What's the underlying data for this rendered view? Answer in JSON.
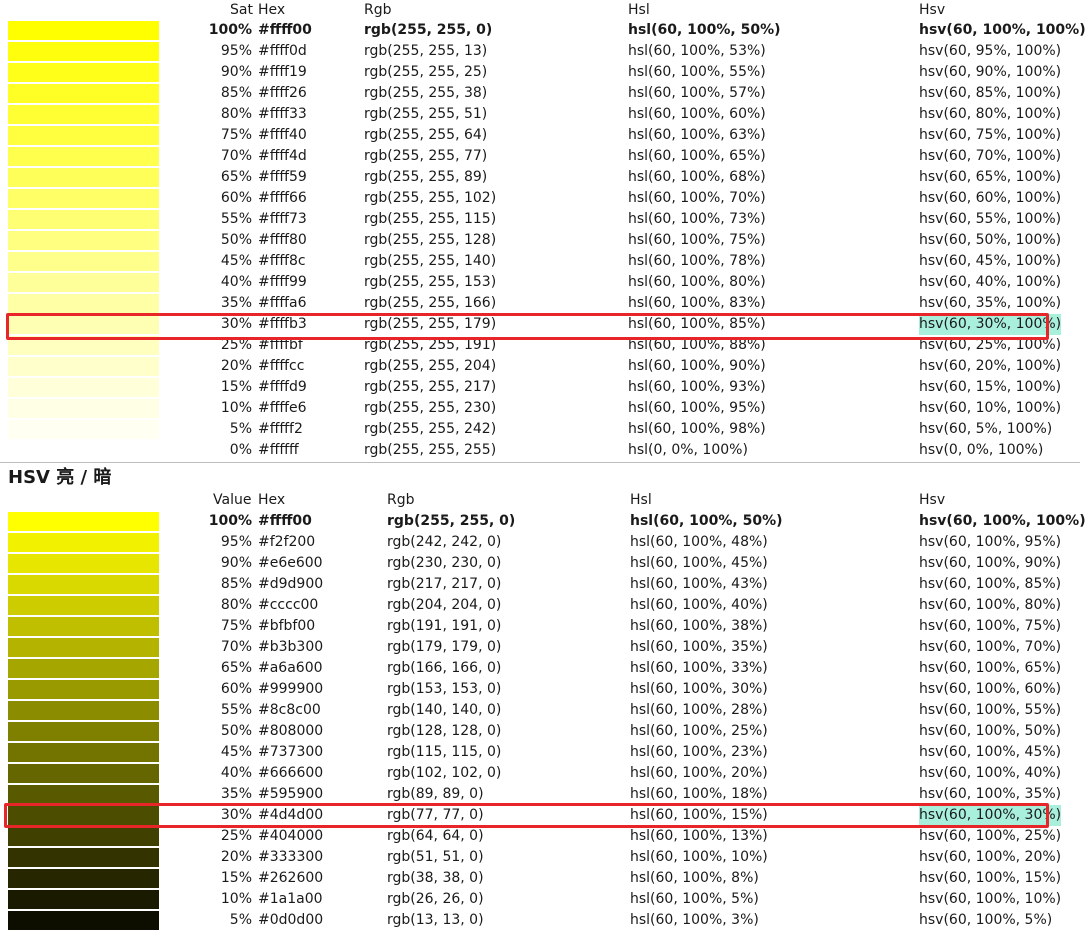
{
  "section1": {
    "headers": {
      "percent": "Sat",
      "hex": "Hex",
      "rgb": "Rgb",
      "hsl": "Hsl",
      "hsv": "Hsv"
    },
    "highlight_index": 14,
    "rows": [
      {
        "pct": "100%",
        "hex": "#ffff00",
        "rgb": "rgb(255, 255, 0)",
        "hsl": "hsl(60, 100%, 50%)",
        "hsv": "hsv(60, 100%, 100%)",
        "swatch": "#ffff00"
      },
      {
        "pct": "95%",
        "hex": "#ffff0d",
        "rgb": "rgb(255, 255, 13)",
        "hsl": "hsl(60, 100%, 53%)",
        "hsv": "hsv(60, 95%, 100%)",
        "swatch": "#ffff0d"
      },
      {
        "pct": "90%",
        "hex": "#ffff19",
        "rgb": "rgb(255, 255, 25)",
        "hsl": "hsl(60, 100%, 55%)",
        "hsv": "hsv(60, 90%, 100%)",
        "swatch": "#ffff19"
      },
      {
        "pct": "85%",
        "hex": "#ffff26",
        "rgb": "rgb(255, 255, 38)",
        "hsl": "hsl(60, 100%, 57%)",
        "hsv": "hsv(60, 85%, 100%)",
        "swatch": "#ffff26"
      },
      {
        "pct": "80%",
        "hex": "#ffff33",
        "rgb": "rgb(255, 255, 51)",
        "hsl": "hsl(60, 100%, 60%)",
        "hsv": "hsv(60, 80%, 100%)",
        "swatch": "#ffff33"
      },
      {
        "pct": "75%",
        "hex": "#ffff40",
        "rgb": "rgb(255, 255, 64)",
        "hsl": "hsl(60, 100%, 63%)",
        "hsv": "hsv(60, 75%, 100%)",
        "swatch": "#ffff40"
      },
      {
        "pct": "70%",
        "hex": "#ffff4d",
        "rgb": "rgb(255, 255, 77)",
        "hsl": "hsl(60, 100%, 65%)",
        "hsv": "hsv(60, 70%, 100%)",
        "swatch": "#ffff4d"
      },
      {
        "pct": "65%",
        "hex": "#ffff59",
        "rgb": "rgb(255, 255, 89)",
        "hsl": "hsl(60, 100%, 68%)",
        "hsv": "hsv(60, 65%, 100%)",
        "swatch": "#ffff59"
      },
      {
        "pct": "60%",
        "hex": "#ffff66",
        "rgb": "rgb(255, 255, 102)",
        "hsl": "hsl(60, 100%, 70%)",
        "hsv": "hsv(60, 60%, 100%)",
        "swatch": "#ffff66"
      },
      {
        "pct": "55%",
        "hex": "#ffff73",
        "rgb": "rgb(255, 255, 115)",
        "hsl": "hsl(60, 100%, 73%)",
        "hsv": "hsv(60, 55%, 100%)",
        "swatch": "#ffff73"
      },
      {
        "pct": "50%",
        "hex": "#ffff80",
        "rgb": "rgb(255, 255, 128)",
        "hsl": "hsl(60, 100%, 75%)",
        "hsv": "hsv(60, 50%, 100%)",
        "swatch": "#ffff80"
      },
      {
        "pct": "45%",
        "hex": "#ffff8c",
        "rgb": "rgb(255, 255, 140)",
        "hsl": "hsl(60, 100%, 78%)",
        "hsv": "hsv(60, 45%, 100%)",
        "swatch": "#ffff8c"
      },
      {
        "pct": "40%",
        "hex": "#ffff99",
        "rgb": "rgb(255, 255, 153)",
        "hsl": "hsl(60, 100%, 80%)",
        "hsv": "hsv(60, 40%, 100%)",
        "swatch": "#ffff99"
      },
      {
        "pct": "35%",
        "hex": "#ffffa6",
        "rgb": "rgb(255, 255, 166)",
        "hsl": "hsl(60, 100%, 83%)",
        "hsv": "hsv(60, 35%, 100%)",
        "swatch": "#ffffa6"
      },
      {
        "pct": "30%",
        "hex": "#ffffb3",
        "rgb": "rgb(255, 255, 179)",
        "hsl": "hsl(60, 100%, 85%)",
        "hsv": "hsv(60, 30%, 100%)",
        "swatch": "#ffffb3"
      },
      {
        "pct": "25%",
        "hex": "#ffffbf",
        "rgb": "rgb(255, 255, 191)",
        "hsl": "hsl(60, 100%, 88%)",
        "hsv": "hsv(60, 25%, 100%)",
        "swatch": "#ffffbf"
      },
      {
        "pct": "20%",
        "hex": "#ffffcc",
        "rgb": "rgb(255, 255, 204)",
        "hsl": "hsl(60, 100%, 90%)",
        "hsv": "hsv(60, 20%, 100%)",
        "swatch": "#ffffcc"
      },
      {
        "pct": "15%",
        "hex": "#ffffd9",
        "rgb": "rgb(255, 255, 217)",
        "hsl": "hsl(60, 100%, 93%)",
        "hsv": "hsv(60, 15%, 100%)",
        "swatch": "#ffffd9"
      },
      {
        "pct": "10%",
        "hex": "#ffffe6",
        "rgb": "rgb(255, 255, 230)",
        "hsl": "hsl(60, 100%, 95%)",
        "hsv": "hsv(60, 10%, 100%)",
        "swatch": "#ffffe6"
      },
      {
        "pct": "5%",
        "hex": "#fffff2",
        "rgb": "rgb(255, 255, 242)",
        "hsl": "hsl(60, 100%, 98%)",
        "hsv": "hsv(60, 5%, 100%)",
        "swatch": "#fffff2"
      },
      {
        "pct": "0%",
        "hex": "#ffffff",
        "rgb": "rgb(255, 255, 255)",
        "hsl": "hsl(0, 0%, 100%)",
        "hsv": "hsv(0, 0%, 100%)",
        "swatch": "#ffffff"
      }
    ]
  },
  "section2": {
    "title": "HSV 亮 / 暗",
    "headers": {
      "percent": "Value",
      "hex": "Hex",
      "rgb": "Rgb",
      "hsl": "Hsl",
      "hsv": "Hsv"
    },
    "highlight_index": 14,
    "rows": [
      {
        "pct": "100%",
        "hex": "#ffff00",
        "rgb": "rgb(255, 255, 0)",
        "hsl": "hsl(60, 100%, 50%)",
        "hsv": "hsv(60, 100%, 100%)",
        "swatch": "#ffff00"
      },
      {
        "pct": "95%",
        "hex": "#f2f200",
        "rgb": "rgb(242, 242, 0)",
        "hsl": "hsl(60, 100%, 48%)",
        "hsv": "hsv(60, 100%, 95%)",
        "swatch": "#f2f200"
      },
      {
        "pct": "90%",
        "hex": "#e6e600",
        "rgb": "rgb(230, 230, 0)",
        "hsl": "hsl(60, 100%, 45%)",
        "hsv": "hsv(60, 100%, 90%)",
        "swatch": "#e6e600"
      },
      {
        "pct": "85%",
        "hex": "#d9d900",
        "rgb": "rgb(217, 217, 0)",
        "hsl": "hsl(60, 100%, 43%)",
        "hsv": "hsv(60, 100%, 85%)",
        "swatch": "#d9d900"
      },
      {
        "pct": "80%",
        "hex": "#cccc00",
        "rgb": "rgb(204, 204, 0)",
        "hsl": "hsl(60, 100%, 40%)",
        "hsv": "hsv(60, 100%, 80%)",
        "swatch": "#cccc00"
      },
      {
        "pct": "75%",
        "hex": "#bfbf00",
        "rgb": "rgb(191, 191, 0)",
        "hsl": "hsl(60, 100%, 38%)",
        "hsv": "hsv(60, 100%, 75%)",
        "swatch": "#bfbf00"
      },
      {
        "pct": "70%",
        "hex": "#b3b300",
        "rgb": "rgb(179, 179, 0)",
        "hsl": "hsl(60, 100%, 35%)",
        "hsv": "hsv(60, 100%, 70%)",
        "swatch": "#b3b300"
      },
      {
        "pct": "65%",
        "hex": "#a6a600",
        "rgb": "rgb(166, 166, 0)",
        "hsl": "hsl(60, 100%, 33%)",
        "hsv": "hsv(60, 100%, 65%)",
        "swatch": "#a6a600"
      },
      {
        "pct": "60%",
        "hex": "#999900",
        "rgb": "rgb(153, 153, 0)",
        "hsl": "hsl(60, 100%, 30%)",
        "hsv": "hsv(60, 100%, 60%)",
        "swatch": "#999900"
      },
      {
        "pct": "55%",
        "hex": "#8c8c00",
        "rgb": "rgb(140, 140, 0)",
        "hsl": "hsl(60, 100%, 28%)",
        "hsv": "hsv(60, 100%, 55%)",
        "swatch": "#8c8c00"
      },
      {
        "pct": "50%",
        "hex": "#808000",
        "rgb": "rgb(128, 128, 0)",
        "hsl": "hsl(60, 100%, 25%)",
        "hsv": "hsv(60, 100%, 50%)",
        "swatch": "#808000"
      },
      {
        "pct": "45%",
        "hex": "#737300",
        "rgb": "rgb(115, 115, 0)",
        "hsl": "hsl(60, 100%, 23%)",
        "hsv": "hsv(60, 100%, 45%)",
        "swatch": "#737300"
      },
      {
        "pct": "40%",
        "hex": "#666600",
        "rgb": "rgb(102, 102, 0)",
        "hsl": "hsl(60, 100%, 20%)",
        "hsv": "hsv(60, 100%, 40%)",
        "swatch": "#666600"
      },
      {
        "pct": "35%",
        "hex": "#595900",
        "rgb": "rgb(89, 89, 0)",
        "hsl": "hsl(60, 100%, 18%)",
        "hsv": "hsv(60, 100%, 35%)",
        "swatch": "#595900"
      },
      {
        "pct": "30%",
        "hex": "#4d4d00",
        "rgb": "rgb(77, 77, 0)",
        "hsl": "hsl(60, 100%, 15%)",
        "hsv": "hsv(60, 100%, 30%)",
        "swatch": "#4d4d00"
      },
      {
        "pct": "25%",
        "hex": "#404000",
        "rgb": "rgb(64, 64, 0)",
        "hsl": "hsl(60, 100%, 13%)",
        "hsv": "hsv(60, 100%, 25%)",
        "swatch": "#404000"
      },
      {
        "pct": "20%",
        "hex": "#333300",
        "rgb": "rgb(51, 51, 0)",
        "hsl": "hsl(60, 100%, 10%)",
        "hsv": "hsv(60, 100%, 20%)",
        "swatch": "#333300"
      },
      {
        "pct": "15%",
        "hex": "#262600",
        "rgb": "rgb(38, 38, 0)",
        "hsl": "hsl(60, 100%, 8%)",
        "hsv": "hsv(60, 100%, 15%)",
        "swatch": "#262600"
      },
      {
        "pct": "10%",
        "hex": "#1a1a00",
        "rgb": "rgb(26, 26, 0)",
        "hsl": "hsl(60, 100%, 5%)",
        "hsv": "hsv(60, 100%, 10%)",
        "swatch": "#1a1a00"
      },
      {
        "pct": "5%",
        "hex": "#0d0d00",
        "rgb": "rgb(13, 13, 0)",
        "hsl": "hsl(60, 100%, 3%)",
        "hsv": "hsv(60, 100%, 5%)",
        "swatch": "#0d0d00"
      }
    ]
  },
  "colors": {
    "highlight": "#a8f0dc",
    "marker": "#e8262a",
    "divider": "#bdbdbd"
  }
}
